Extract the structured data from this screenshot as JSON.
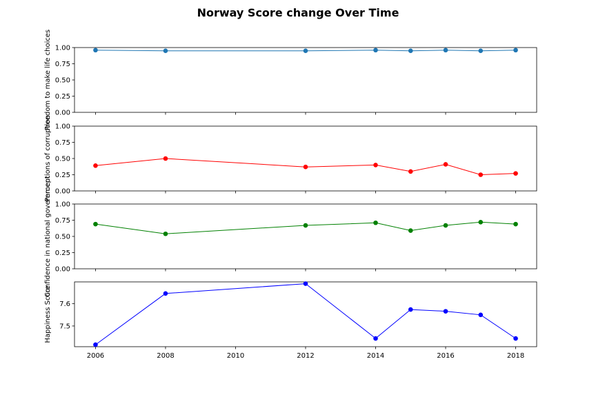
{
  "figure": {
    "title": "Norway Score change Over Time"
  },
  "chart_data": [
    {
      "type": "line",
      "ylabel": "Freedom to make life choices",
      "x": [
        2006,
        2008,
        2012,
        2014,
        2015,
        2016,
        2017,
        2018
      ],
      "y": [
        0.96,
        0.95,
        0.95,
        0.96,
        0.95,
        0.96,
        0.95,
        0.96
      ],
      "color": "#1f77b4",
      "ylim": [
        0,
        1
      ],
      "yticks": [
        0.0,
        0.25,
        0.5,
        0.75,
        1.0
      ],
      "ytick_labels": [
        "0.00",
        "0.25",
        "0.50",
        "0.75",
        "1.00"
      ]
    },
    {
      "type": "line",
      "ylabel": "Perceptions of corruption",
      "x": [
        2006,
        2008,
        2012,
        2014,
        2015,
        2016,
        2017,
        2018
      ],
      "y": [
        0.39,
        0.5,
        0.37,
        0.4,
        0.3,
        0.41,
        0.25,
        0.27
      ],
      "color": "#ff0000",
      "ylim": [
        0,
        1
      ],
      "yticks": [
        0.0,
        0.25,
        0.5,
        0.75,
        1.0
      ],
      "ytick_labels": [
        "0.00",
        "0.25",
        "0.50",
        "0.75",
        "1.00"
      ]
    },
    {
      "type": "line",
      "ylabel": "Confidence in national government",
      "x": [
        2006,
        2008,
        2012,
        2014,
        2015,
        2016,
        2017,
        2018
      ],
      "y": [
        0.69,
        0.54,
        0.67,
        0.71,
        0.59,
        0.67,
        0.72,
        0.69
      ],
      "color": "#008000",
      "ylim": [
        0,
        1
      ],
      "yticks": [
        0.0,
        0.25,
        0.5,
        0.75,
        1.0
      ],
      "ytick_labels": [
        "0.00",
        "0.25",
        "0.50",
        "0.75",
        "1.00"
      ]
    },
    {
      "type": "line",
      "ylabel": "Happiness Score",
      "x": [
        2006,
        2008,
        2012,
        2014,
        2015,
        2016,
        2017,
        2018
      ],
      "y": [
        7.416,
        7.646,
        7.69,
        7.444,
        7.574,
        7.566,
        7.55,
        7.444
      ],
      "color": "#0000ff",
      "ylim": [
        7.407,
        7.698
      ],
      "yticks": [
        7.5,
        7.6
      ],
      "ytick_labels": [
        "7.5",
        "7.6"
      ]
    }
  ],
  "shared_x": {
    "xlim": [
      2005.4,
      2018.6
    ],
    "xticks": [
      2006,
      2008,
      2010,
      2012,
      2014,
      2016,
      2018
    ],
    "xtick_labels": [
      "2006",
      "2008",
      "2010",
      "2012",
      "2014",
      "2016",
      "2018"
    ]
  }
}
